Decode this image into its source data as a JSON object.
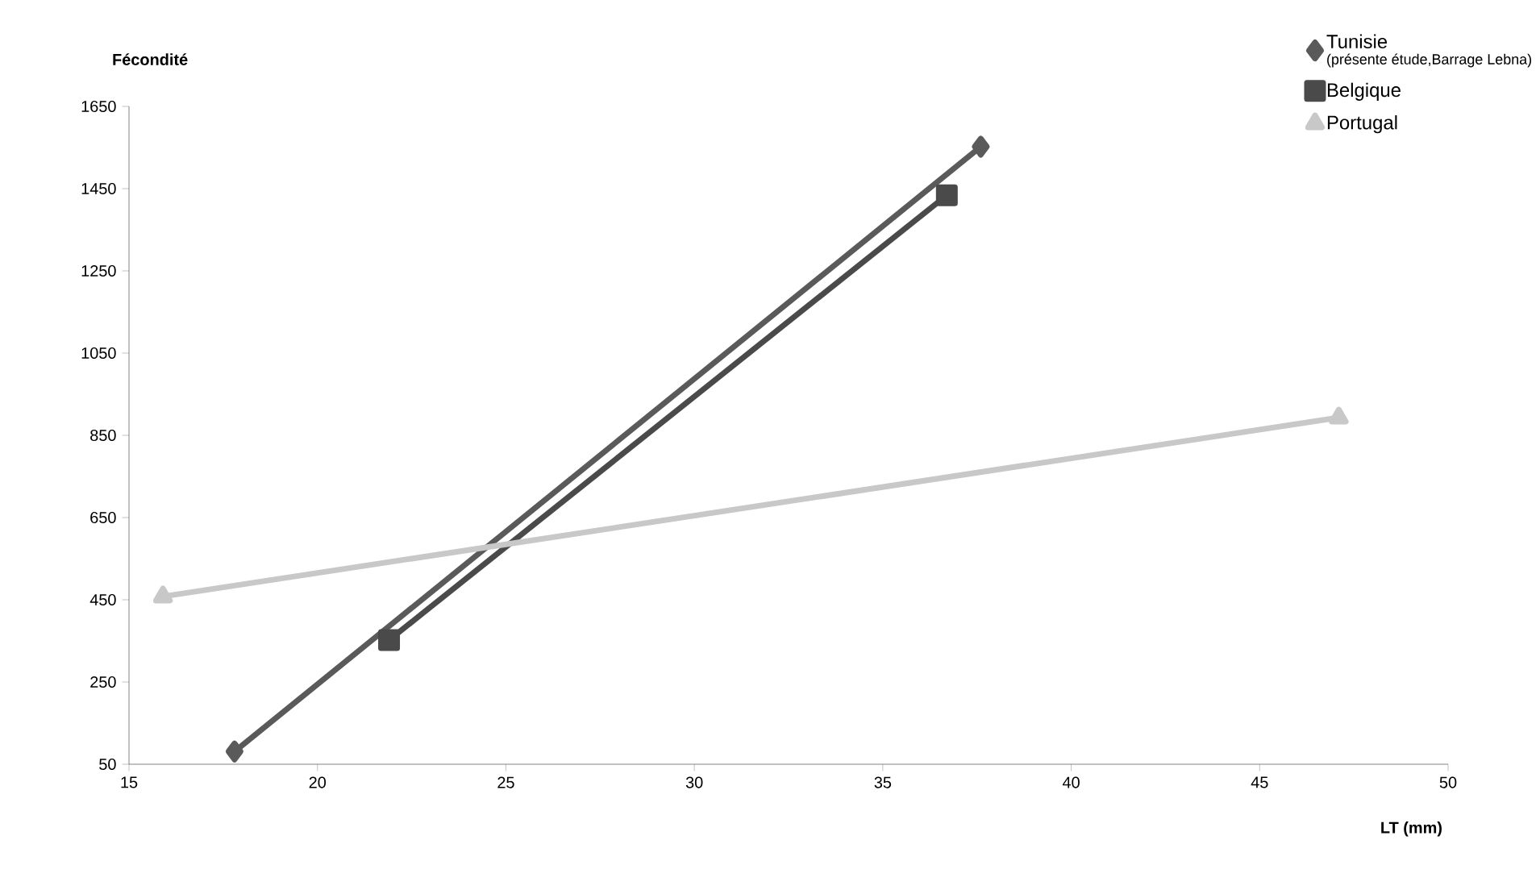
{
  "chart_data": {
    "type": "line",
    "xlabel": "LT (mm)",
    "ylabel": "Fécondité",
    "xlim": [
      15,
      50
    ],
    "xticks": [
      15,
      20,
      25,
      30,
      35,
      40,
      45,
      50
    ],
    "ylim": [
      50,
      1650
    ],
    "yticks": [
      50,
      250,
      450,
      650,
      850,
      1050,
      1250,
      1450,
      1650
    ],
    "grid": false,
    "legend": "top right",
    "annotations": [
      "(présente étude,Barrage Lebna)"
    ],
    "series": [
      {
        "name": "Tunisie",
        "color": "#5a5a5a",
        "marker": "diamond",
        "x": [
          17.8,
          37.6
        ],
        "values": [
          81,
          1552
        ]
      },
      {
        "name": "Belgique",
        "color": "#4a4a4a",
        "marker": "square",
        "x": [
          21.9,
          36.7
        ],
        "values": [
          352,
          1434
        ]
      },
      {
        "name": "Portugal",
        "color": "#c8c8c8",
        "marker": "triangle",
        "x": [
          15.9,
          47.1
        ],
        "values": [
          458,
          893
        ]
      }
    ]
  }
}
